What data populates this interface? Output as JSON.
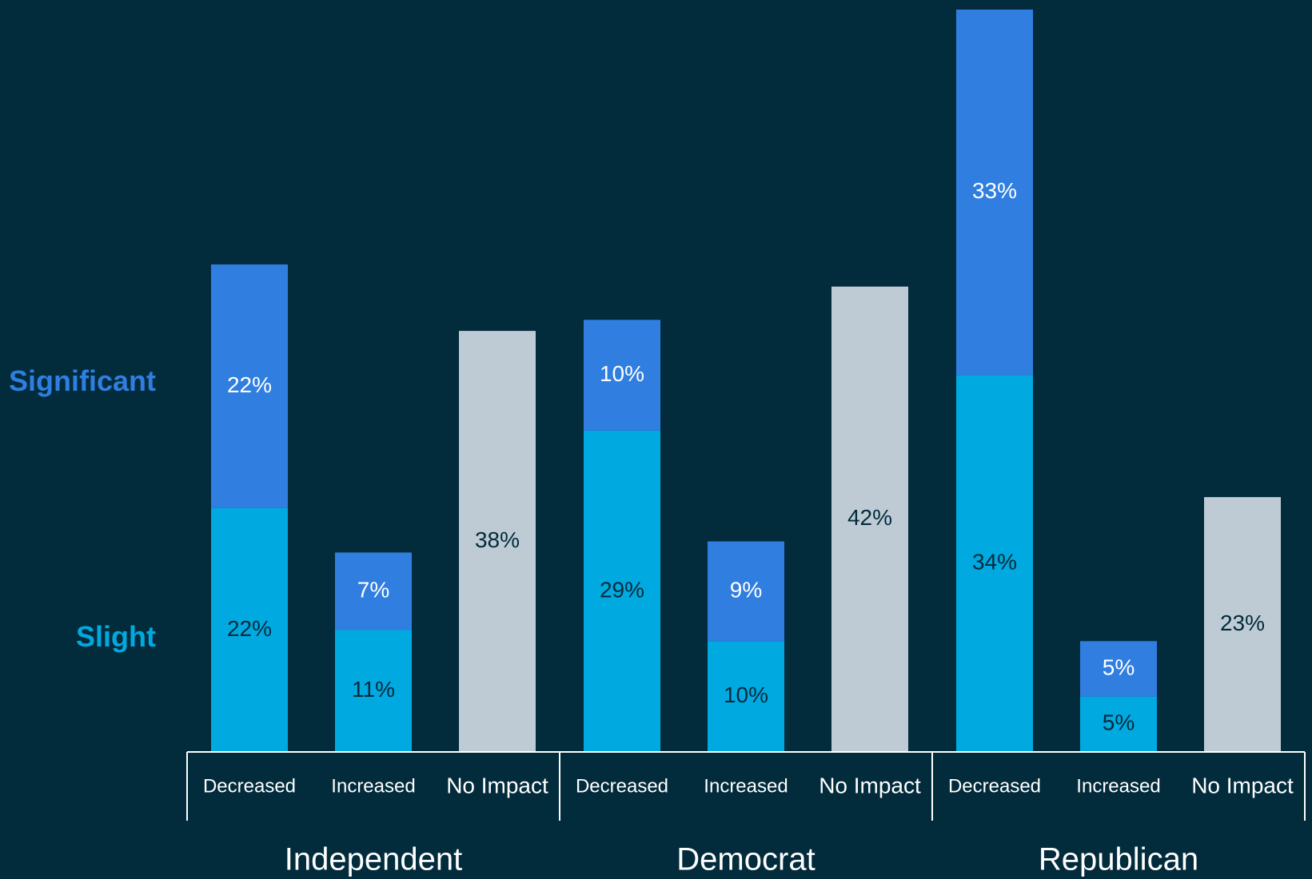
{
  "colors": {
    "background": "#022b3c",
    "significant": "#2f7ee0",
    "slight": "#00a9e0",
    "no_impact": "#bfcbd4",
    "label_on_significant": "#ffffff",
    "label_on_slight": "#022b3c",
    "label_on_no_impact": "#022b3c",
    "axis_text": "#ffffff",
    "axis_line": "#ffffff"
  },
  "legend": {
    "significant": "Significant",
    "slight": "Slight"
  },
  "chart_data": {
    "type": "bar",
    "stacked": true,
    "groups": [
      "Independent",
      "Democrat",
      "Republican"
    ],
    "categories": [
      "Decreased",
      "Increased",
      "No Impact"
    ],
    "series": [
      {
        "name": "Slight",
        "key": "slight",
        "values": [
          [
            22,
            11,
            null
          ],
          [
            29,
            10,
            null
          ],
          [
            34,
            5,
            null
          ]
        ]
      },
      {
        "name": "Significant",
        "key": "significant",
        "values": [
          [
            22,
            7,
            null
          ],
          [
            10,
            9,
            null
          ],
          [
            33,
            5,
            null
          ]
        ]
      },
      {
        "name": "",
        "key": "no_impact",
        "values": [
          [
            null,
            null,
            38
          ],
          [
            null,
            null,
            42
          ],
          [
            null,
            null,
            23
          ]
        ]
      }
    ],
    "value_suffix": "%",
    "ylim": [
      0,
      67
    ],
    "grid": false,
    "legend_position": "left"
  }
}
